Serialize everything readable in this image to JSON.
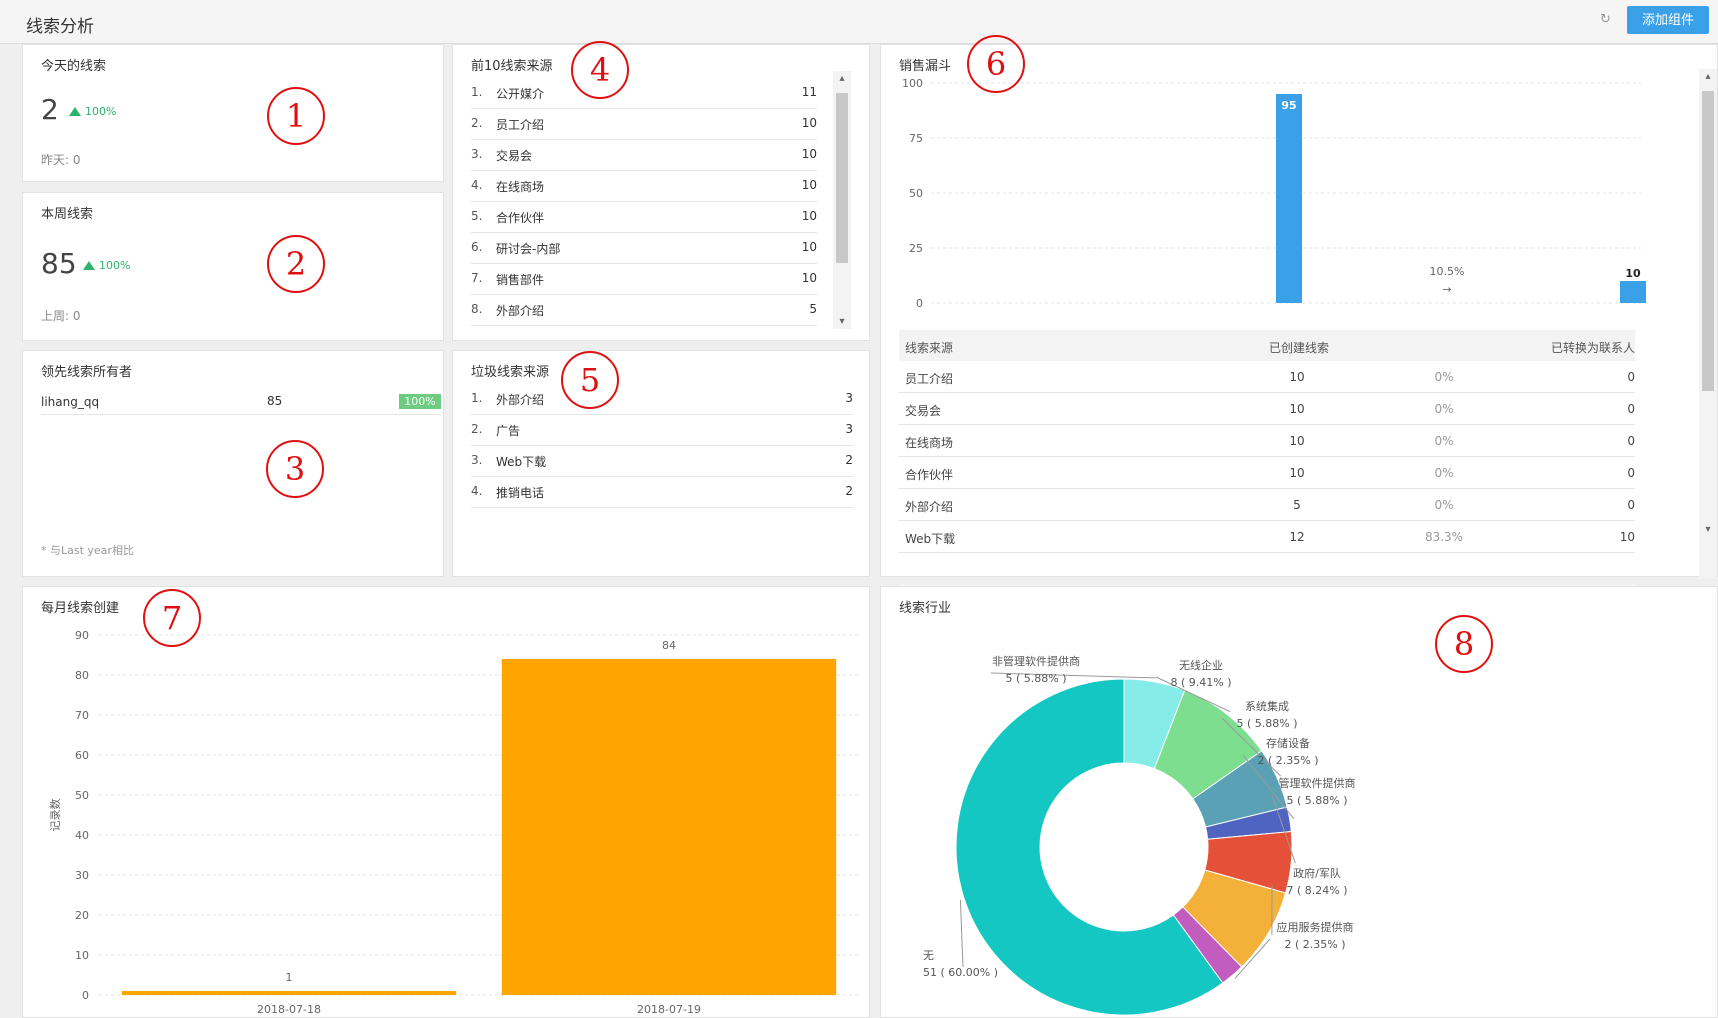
{
  "header": {
    "title": "线索分析",
    "refresh_icon": "refresh-icon",
    "add_button": "添加组件",
    "accent": "#3aa0e8"
  },
  "annotations": [
    "1",
    "2",
    "3",
    "4",
    "5",
    "6",
    "7",
    "8"
  ],
  "today": {
    "title": "今天的线索",
    "value": "2",
    "trend": "100%",
    "sub": "昨天: 0"
  },
  "week": {
    "title": "本周线索",
    "value": "85",
    "trend": "100%",
    "sub": "上周: 0"
  },
  "owners": {
    "title": "领先线索所有者",
    "rows": [
      {
        "name": "lihang_qq",
        "count": "85",
        "pct": "100%"
      }
    ],
    "footnote": "* 与Last year相比"
  },
  "top10": {
    "title": "前10线索来源",
    "rows": [
      {
        "idx": "1.",
        "label": "公开媒介",
        "count": "11"
      },
      {
        "idx": "2.",
        "label": "员工介绍",
        "count": "10"
      },
      {
        "idx": "3.",
        "label": "交易会",
        "count": "10"
      },
      {
        "idx": "4.",
        "label": "在线商场",
        "count": "10"
      },
      {
        "idx": "5.",
        "label": "合作伙伴",
        "count": "10"
      },
      {
        "idx": "6.",
        "label": "研讨会-内部",
        "count": "10"
      },
      {
        "idx": "7.",
        "label": "销售部件",
        "count": "10"
      },
      {
        "idx": "8.",
        "label": "外部介绍",
        "count": "5"
      }
    ]
  },
  "junk": {
    "title": "垃圾线索来源",
    "rows": [
      {
        "idx": "1.",
        "label": "外部介绍",
        "count": "3"
      },
      {
        "idx": "2.",
        "label": "广告",
        "count": "3"
      },
      {
        "idx": "3.",
        "label": "Web下载",
        "count": "2"
      },
      {
        "idx": "4.",
        "label": "推销电话",
        "count": "2"
      }
    ]
  },
  "funnel": {
    "title": "销售漏斗",
    "conversion_label": "10.5%",
    "arrow": "→",
    "table": {
      "headers": [
        "线索来源",
        "已创建线索",
        "",
        "已转换为联系人"
      ],
      "rows": [
        {
          "source": "员工介绍",
          "created": "10",
          "rate": "0%",
          "converted": "0"
        },
        {
          "source": "交易会",
          "created": "10",
          "rate": "0%",
          "converted": "0"
        },
        {
          "source": "在线商场",
          "created": "10",
          "rate": "0%",
          "converted": "0"
        },
        {
          "source": "合作伙伴",
          "created": "10",
          "rate": "0%",
          "converted": "0"
        },
        {
          "source": "外部介绍",
          "created": "5",
          "rate": "0%",
          "converted": "0"
        },
        {
          "source": "Web下载",
          "created": "12",
          "rate": "83.3%",
          "converted": "10"
        }
      ]
    }
  },
  "monthly": {
    "title": "每月线索创建"
  },
  "industry": {
    "title": "线索行业"
  },
  "chart_data": [
    {
      "type": "bar",
      "title": "销售漏斗",
      "ylim": [
        0,
        100
      ],
      "yticks": [
        0,
        25,
        50,
        75,
        100
      ],
      "values": [
        95,
        10
      ],
      "value_labels": [
        "95",
        "10"
      ],
      "color": "#3aa0e8",
      "grid": true
    },
    {
      "type": "bar",
      "title": "每月线索创建",
      "ylabel": "记录数",
      "categories": [
        "2018-07-18",
        "2018-07-19"
      ],
      "values": [
        1,
        84
      ],
      "value_labels": [
        "1",
        "84"
      ],
      "ylim": [
        0,
        90
      ],
      "yticks": [
        0,
        10,
        20,
        30,
        40,
        50,
        60,
        70,
        80,
        90
      ],
      "color": "#ffa500",
      "grid": true
    },
    {
      "type": "pie",
      "title": "线索行业",
      "donut": true,
      "slices": [
        {
          "name": "非管理软件提供商",
          "value": 5,
          "label": "5 ( 5.88% )",
          "color": "#86ece8"
        },
        {
          "name": "无线企业",
          "value": 8,
          "label": "8 ( 9.41% )",
          "color": "#7dde8f"
        },
        {
          "name": "系统集成",
          "value": 5,
          "label": "5 ( 5.88% )",
          "color": "#5aa1b5"
        },
        {
          "name": "存储设备",
          "value": 2,
          "label": "2 ( 2.35% )",
          "color": "#4f63c1"
        },
        {
          "name": "管理软件提供商",
          "value": 5,
          "label": "5 ( 5.88% )",
          "color": "#e55038"
        },
        {
          "name": "政府/军队",
          "value": 7,
          "label": "7 ( 8.24% )",
          "color": "#f3b13a"
        },
        {
          "name": "应用服务提供商",
          "value": 2,
          "label": "2 ( 2.35% )",
          "color": "#c35cbf"
        },
        {
          "name": "无",
          "value": 51,
          "label": "51 ( 60.00% )",
          "color": "#14c7c2"
        }
      ]
    }
  ]
}
